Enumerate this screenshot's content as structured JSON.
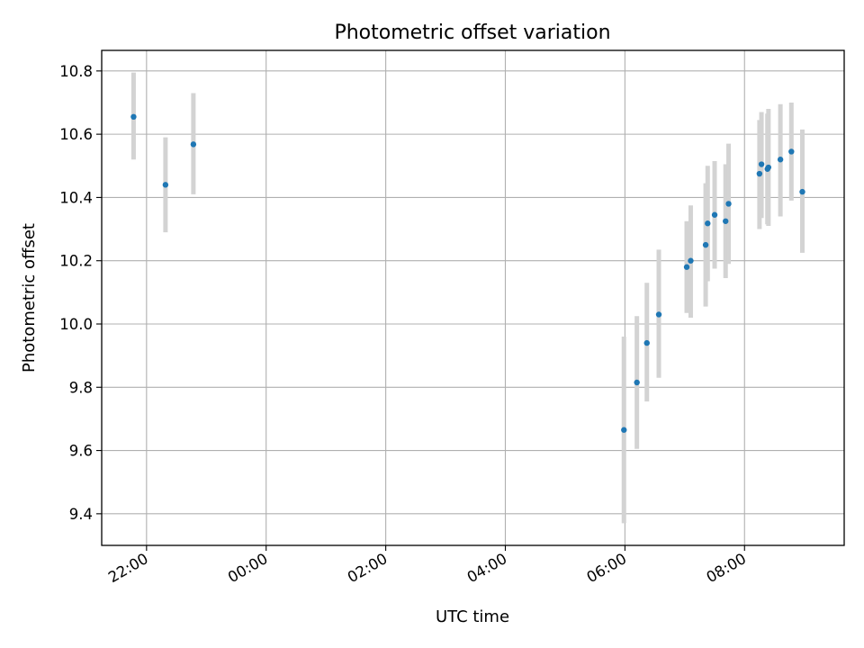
{
  "chart_data": {
    "type": "scatter",
    "title": "Photometric offset variation",
    "xlabel": "UTC time",
    "ylabel": "Photometric offset",
    "x_axis": "time",
    "x_range": [
      "21:15",
      "09:40"
    ],
    "ylim": [
      9.3,
      10.865
    ],
    "x_ticks": [
      "22:00",
      "00:00",
      "02:00",
      "04:00",
      "06:00",
      "08:00"
    ],
    "y_ticks": [
      "9.4",
      "9.6",
      "9.8",
      "10.0",
      "10.2",
      "10.4",
      "10.6",
      "10.8"
    ],
    "grid": true,
    "point_color": "#1f77b4",
    "errorbar_color": "#d3d3d3",
    "points": [
      {
        "x": "21:47",
        "y": 10.655,
        "ylow": 10.52,
        "yhigh": 10.795
      },
      {
        "x": "22:19",
        "y": 10.44,
        "ylow": 10.29,
        "yhigh": 10.59
      },
      {
        "x": "22:47",
        "y": 10.568,
        "ylow": 10.41,
        "yhigh": 10.73
      },
      {
        "x": "05:59",
        "y": 9.665,
        "ylow": 9.37,
        "yhigh": 9.96
      },
      {
        "x": "06:12",
        "y": 9.815,
        "ylow": 9.605,
        "yhigh": 10.025
      },
      {
        "x": "06:22",
        "y": 9.94,
        "ylow": 9.755,
        "yhigh": 10.13
      },
      {
        "x": "06:34",
        "y": 10.03,
        "ylow": 9.83,
        "yhigh": 10.235
      },
      {
        "x": "07:02",
        "y": 10.18,
        "ylow": 10.035,
        "yhigh": 10.325
      },
      {
        "x": "07:06",
        "y": 10.2,
        "ylow": 10.02,
        "yhigh": 10.375
      },
      {
        "x": "07:21",
        "y": 10.25,
        "ylow": 10.055,
        "yhigh": 10.445
      },
      {
        "x": "07:23",
        "y": 10.318,
        "ylow": 10.135,
        "yhigh": 10.5
      },
      {
        "x": "07:30",
        "y": 10.345,
        "ylow": 10.175,
        "yhigh": 10.515
      },
      {
        "x": "07:41",
        "y": 10.325,
        "ylow": 10.145,
        "yhigh": 10.505
      },
      {
        "x": "07:44",
        "y": 10.38,
        "ylow": 10.19,
        "yhigh": 10.57
      },
      {
        "x": "08:15",
        "y": 10.475,
        "ylow": 10.3,
        "yhigh": 10.645
      },
      {
        "x": "08:17",
        "y": 10.505,
        "ylow": 10.335,
        "yhigh": 10.67
      },
      {
        "x": "08:23",
        "y": 10.49,
        "ylow": 10.315,
        "yhigh": 10.665
      },
      {
        "x": "08:24",
        "y": 10.495,
        "ylow": 10.31,
        "yhigh": 10.68
      },
      {
        "x": "08:36",
        "y": 10.52,
        "ylow": 10.34,
        "yhigh": 10.695
      },
      {
        "x": "08:47",
        "y": 10.545,
        "ylow": 10.39,
        "yhigh": 10.7
      },
      {
        "x": "08:58",
        "y": 10.418,
        "ylow": 10.225,
        "yhigh": 10.615
      }
    ]
  }
}
